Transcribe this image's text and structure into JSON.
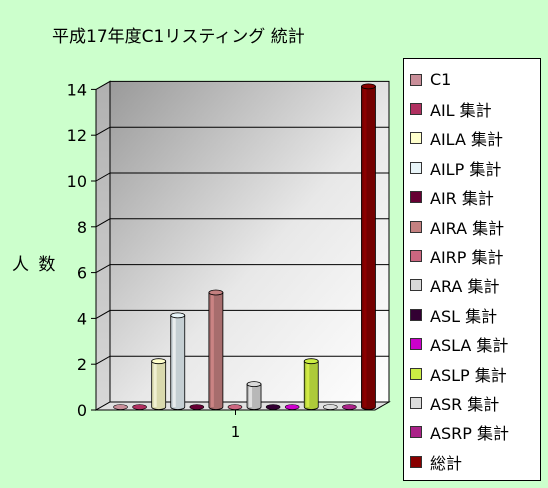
{
  "chart_data": {
    "type": "bar",
    "title": "平成17年度C1リスティング 統計",
    "ylabel": "人 数",
    "xlabel": "",
    "categories": [
      "1"
    ],
    "ylim": [
      0,
      14
    ],
    "yticks": [
      0,
      2,
      4,
      6,
      8,
      10,
      12,
      14
    ],
    "grid": true,
    "legend_position": "right",
    "series": [
      {
        "name": "C1",
        "values": [
          0
        ],
        "color": "#c98e99"
      },
      {
        "name": "AIL 集計",
        "values": [
          0
        ],
        "color": "#b03060"
      },
      {
        "name": "AILA 集計",
        "values": [
          2
        ],
        "color": "#ffffcc"
      },
      {
        "name": "AILP 集計",
        "values": [
          4
        ],
        "color": "#e8f4f8"
      },
      {
        "name": "AIR 集計",
        "values": [
          0
        ],
        "color": "#660033"
      },
      {
        "name": "AIRA 集計",
        "values": [
          5
        ],
        "color": "#c48080"
      },
      {
        "name": "AIRP 集計",
        "values": [
          0
        ],
        "color": "#cc6680"
      },
      {
        "name": "ARA 集計",
        "values": [
          1
        ],
        "color": "#d9d9d9"
      },
      {
        "name": "ASL 集計",
        "values": [
          0
        ],
        "color": "#330033"
      },
      {
        "name": "ASLA 集計",
        "values": [
          0
        ],
        "color": "#cc00cc"
      },
      {
        "name": "ASLP 集計",
        "values": [
          2
        ],
        "color": "#ccee44"
      },
      {
        "name": "ASR 集計",
        "values": [
          0
        ],
        "color": "#dcdcdc"
      },
      {
        "name": "ASRP 集計",
        "values": [
          0
        ],
        "color": "#aa2288"
      },
      {
        "name": "総計",
        "values": [
          14
        ],
        "color": "#880000"
      }
    ]
  }
}
